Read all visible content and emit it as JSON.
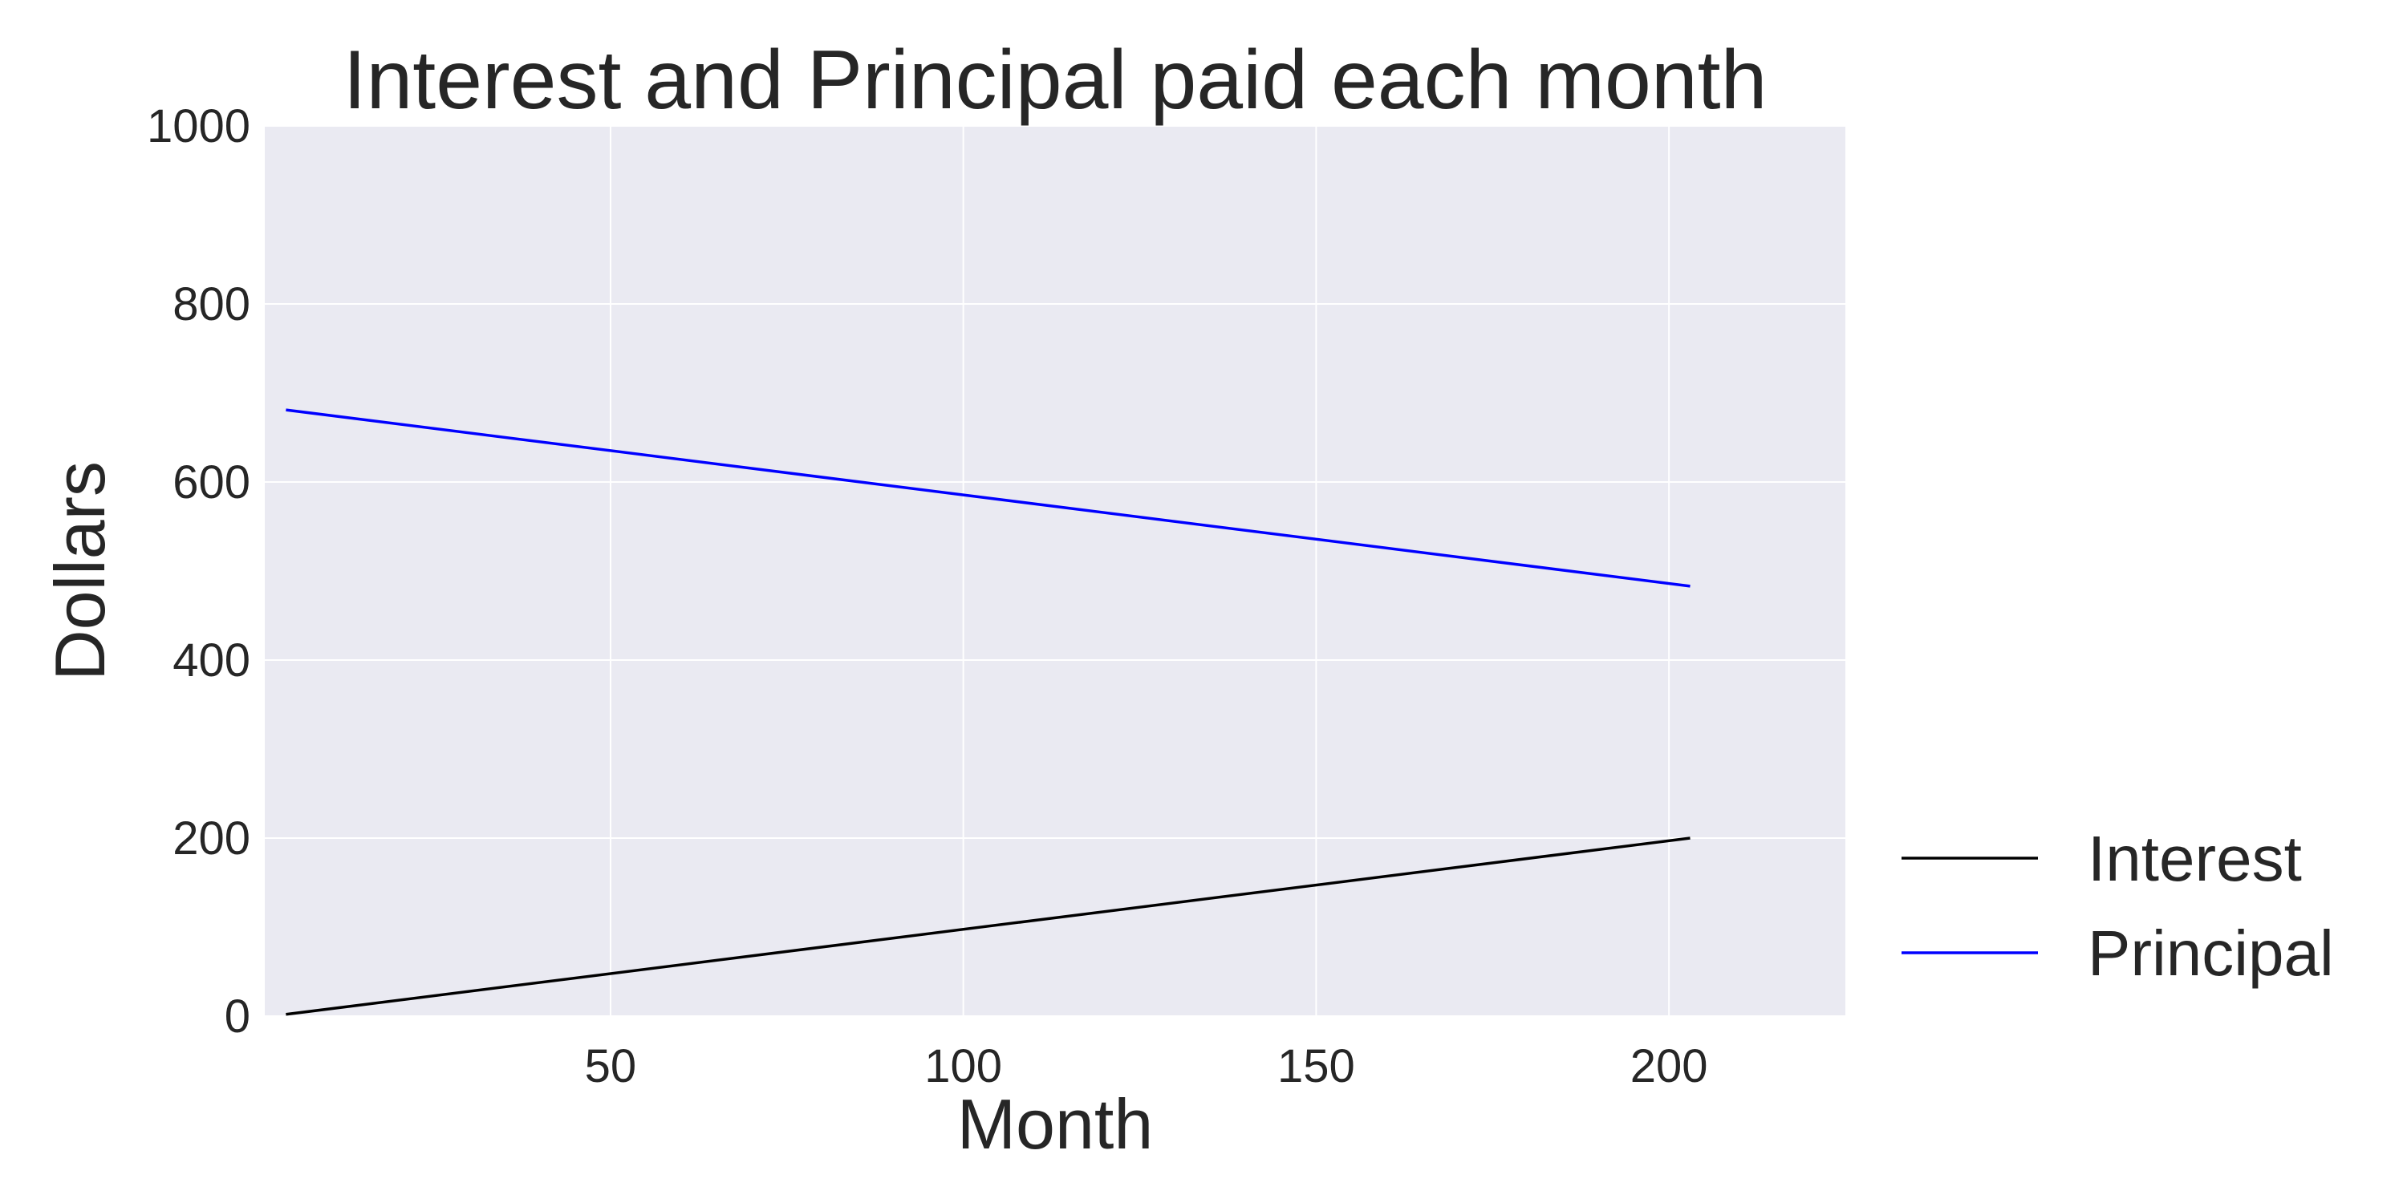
{
  "chart_data": {
    "type": "line",
    "title": "Interest and Principal paid each month",
    "xlabel": "Month",
    "ylabel": "Dollars",
    "xlim": [
      1,
      225
    ],
    "ylim": [
      0,
      1000
    ],
    "x_ticks": [
      50,
      100,
      150,
      200
    ],
    "y_ticks": [
      0,
      200,
      400,
      600,
      800,
      1000
    ],
    "grid": true,
    "legend_position": "lower-right-outside",
    "background_color": "#eaeaf2",
    "grid_color": "#ffffff",
    "series": [
      {
        "name": "Interest",
        "color": "#000000",
        "x": [
          4,
          203
        ],
        "y": [
          2,
          200
        ]
      },
      {
        "name": "Principal",
        "color": "#0000ff",
        "x": [
          4,
          203
        ],
        "y": [
          681,
          483
        ]
      }
    ]
  }
}
